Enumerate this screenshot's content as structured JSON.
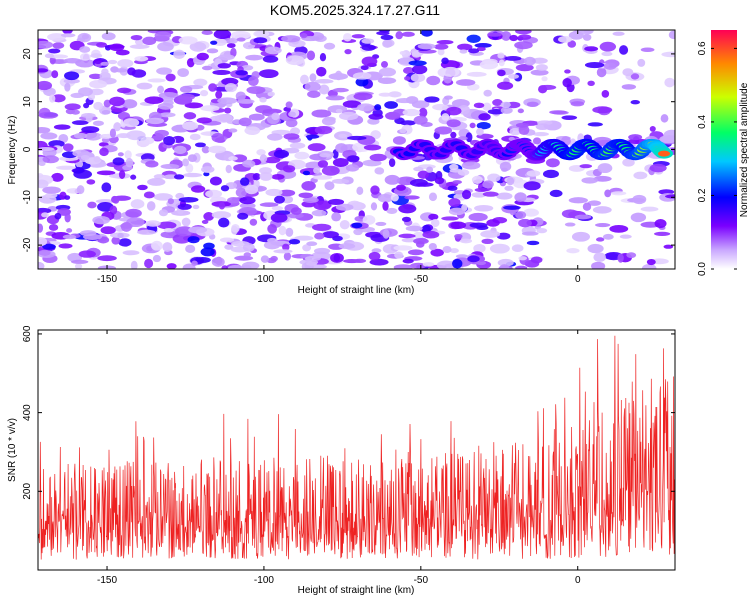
{
  "title": "KOM5.2025.324.17.27.G11",
  "colors": {
    "spectrogram_low": "#ffffff",
    "spectrogram_core": "#6a00e0",
    "snr_line": "#ee2222"
  },
  "chart_data": [
    {
      "type": "heatmap",
      "name": "spectrogram",
      "title": "KOM5.2025.324.17.27.G11",
      "xlabel": "Height of straight line (km)",
      "ylabel": "Frequency (Hz)",
      "xlim": [
        -172,
        31
      ],
      "ylim": [
        -25,
        25
      ],
      "xticks": [
        -150,
        -100,
        -50,
        0
      ],
      "yticks": [
        -20,
        -10,
        0,
        10,
        20
      ],
      "colorbar": {
        "label": "Normalized spectral amplitude",
        "range": [
          0.0,
          0.65
        ],
        "ticks": [
          0.0,
          0.2,
          0.4,
          0.6
        ],
        "colormap": "white-purple-blue-cyan-green-yellow-red"
      },
      "signal_trace": {
        "frequency_hz": 0,
        "x": [
          -57,
          -47,
          -37,
          -27,
          -20,
          -15,
          -10,
          -5,
          0,
          5,
          10,
          15,
          20,
          25,
          28
        ],
        "amplitude": [
          0.2,
          0.17,
          0.18,
          0.15,
          0.22,
          0.2,
          0.3,
          0.34,
          0.38,
          0.35,
          0.4,
          0.36,
          0.42,
          0.52,
          0.6
        ]
      }
    },
    {
      "type": "line",
      "name": "snr",
      "xlabel": "Height of straight line (km)",
      "ylabel": "SNR (10 * v/v)",
      "xlim": [
        -172,
        31
      ],
      "ylim": [
        0,
        610
      ],
      "xticks": [
        -150,
        -100,
        -50,
        0
      ],
      "yticks": [
        200,
        400,
        600
      ],
      "series": [
        {
          "name": "SNR",
          "x_range": [
            -172,
            31
          ],
          "envelope_x": [
            -172,
            -150,
            -120,
            -100,
            -80,
            -60,
            -40,
            -20,
            -5,
            0,
            5,
            10,
            15,
            20,
            25,
            31
          ],
          "mean": [
            125,
            122,
            124,
            127,
            125,
            127,
            130,
            140,
            150,
            172,
            180,
            185,
            190,
            195,
            200,
            200
          ],
          "typical_max": [
            280,
            275,
            280,
            290,
            300,
            290,
            300,
            320,
            340,
            400,
            430,
            430,
            440,
            480,
            520,
            520
          ],
          "peak_max": 610
        }
      ]
    }
  ]
}
